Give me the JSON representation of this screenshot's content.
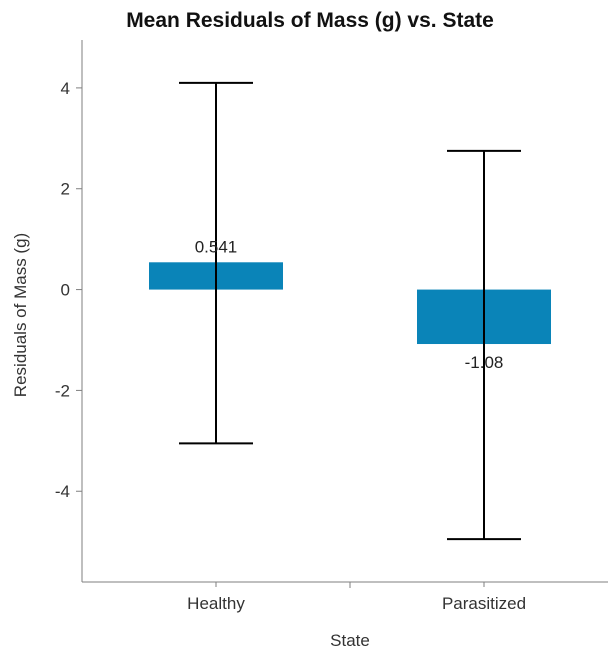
{
  "chart_data": {
    "type": "bar",
    "title": "Mean Residuals of Mass (g) vs. State",
    "xlabel": "State",
    "ylabel": "Residuals of Mass (g)",
    "categories": [
      "Healthy",
      "Parasitized"
    ],
    "values": [
      0.541,
      -1.08
    ],
    "data_labels": [
      "0.541",
      "-1.08"
    ],
    "error_bars": [
      {
        "low": -3.05,
        "high": 4.1
      },
      {
        "low": -4.95,
        "high": 2.75
      }
    ],
    "ylim": [
      -5.8,
      4.95
    ],
    "yticks": [
      4,
      2,
      0,
      -2,
      -4
    ],
    "ytick_labels": [
      "4",
      "2",
      "0",
      "-2",
      "-4"
    ],
    "grid": false,
    "colors": {
      "bar": "#0A84B8",
      "error_bar": "#000000",
      "frame": "#7f7f7f"
    }
  }
}
